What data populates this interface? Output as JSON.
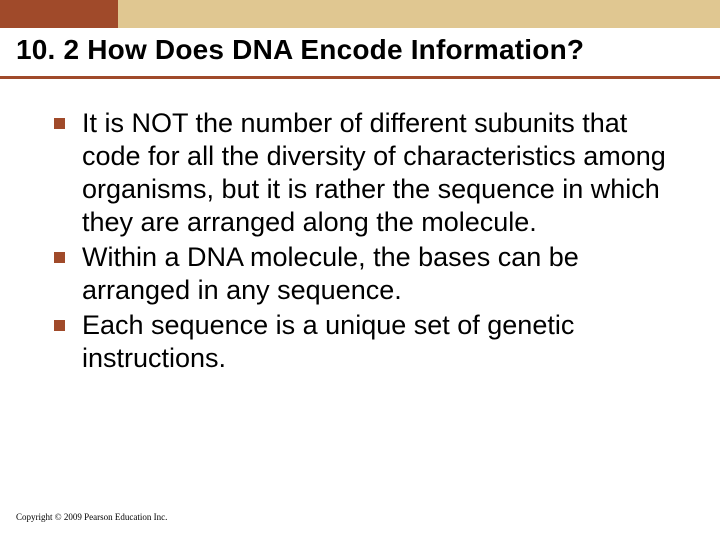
{
  "banner": {
    "left_color": "#a04a2a",
    "right_color": "#e0c791"
  },
  "title": {
    "text": "10. 2 How Does DNA Encode Information?",
    "underline_color": "#a04a2a"
  },
  "bullets": {
    "marker_color": "#a04a2a",
    "items": [
      "It is NOT the number of different subunits that code for all the diversity of characteristics among organisms, but it is rather the sequence in which they are arranged along the molecule.",
      "Within a DNA molecule, the bases can be arranged in any sequence.",
      "Each sequence is a unique set of genetic instructions."
    ]
  },
  "footer": {
    "copyright": "Copyright © 2009 Pearson Education Inc."
  }
}
